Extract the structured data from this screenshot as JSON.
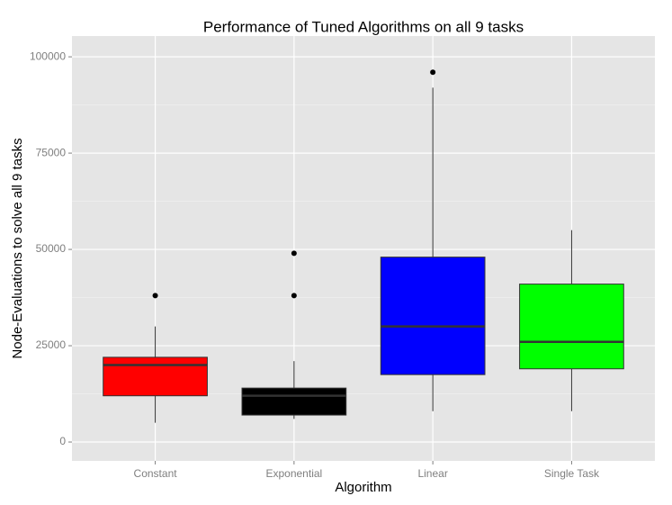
{
  "chart_data": {
    "type": "boxplot",
    "title": "Performance of Tuned Algorithms on all 9 tasks",
    "x_label": "Algorithm",
    "y_label": "Node-Evaluations to solve all 9 tasks",
    "categories": [
      "Constant",
      "Exponential",
      "Linear",
      "Single Task"
    ],
    "boxes": [
      {
        "color": "#ff0000",
        "min": 5000,
        "q1": 12000,
        "median": 20000,
        "q3": 22000,
        "max": 30000,
        "outliers": [
          38000
        ]
      },
      {
        "color": "#000000",
        "min": 6000,
        "q1": 7000,
        "median": 12000,
        "q3": 14000,
        "max": 21000,
        "outliers": [
          38000,
          49000
        ]
      },
      {
        "color": "#0000ff",
        "min": 8000,
        "q1": 17500,
        "median": 30000,
        "q3": 48000,
        "max": 92000,
        "outliers": [
          96000
        ]
      },
      {
        "color": "#00ff00",
        "min": 8000,
        "q1": 19000,
        "median": 26000,
        "q3": 41000,
        "max": 55000,
        "outliers": []
      }
    ],
    "ylim": [
      -4900,
      105400
    ],
    "yticks": [
      0,
      25000,
      50000,
      75000,
      100000
    ],
    "grid": true
  }
}
